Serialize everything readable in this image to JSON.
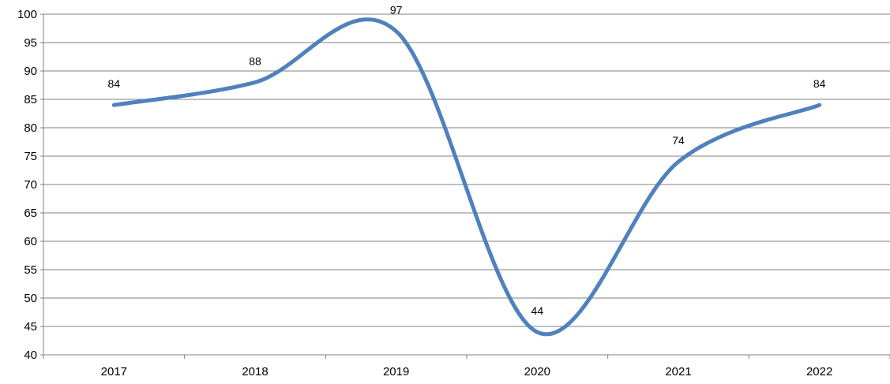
{
  "chart_data": {
    "type": "line",
    "title": "",
    "xlabel": "",
    "ylabel": "",
    "categories": [
      "2017",
      "2018",
      "2019",
      "2020",
      "2021",
      "2022"
    ],
    "series": [
      {
        "values": [
          84,
          88,
          97,
          44,
          74,
          84
        ],
        "color": "#4f81bd"
      }
    ],
    "ylim": [
      40,
      100
    ],
    "ytick_step": 5,
    "grid": true,
    "legend": "none",
    "smooth": true
  }
}
